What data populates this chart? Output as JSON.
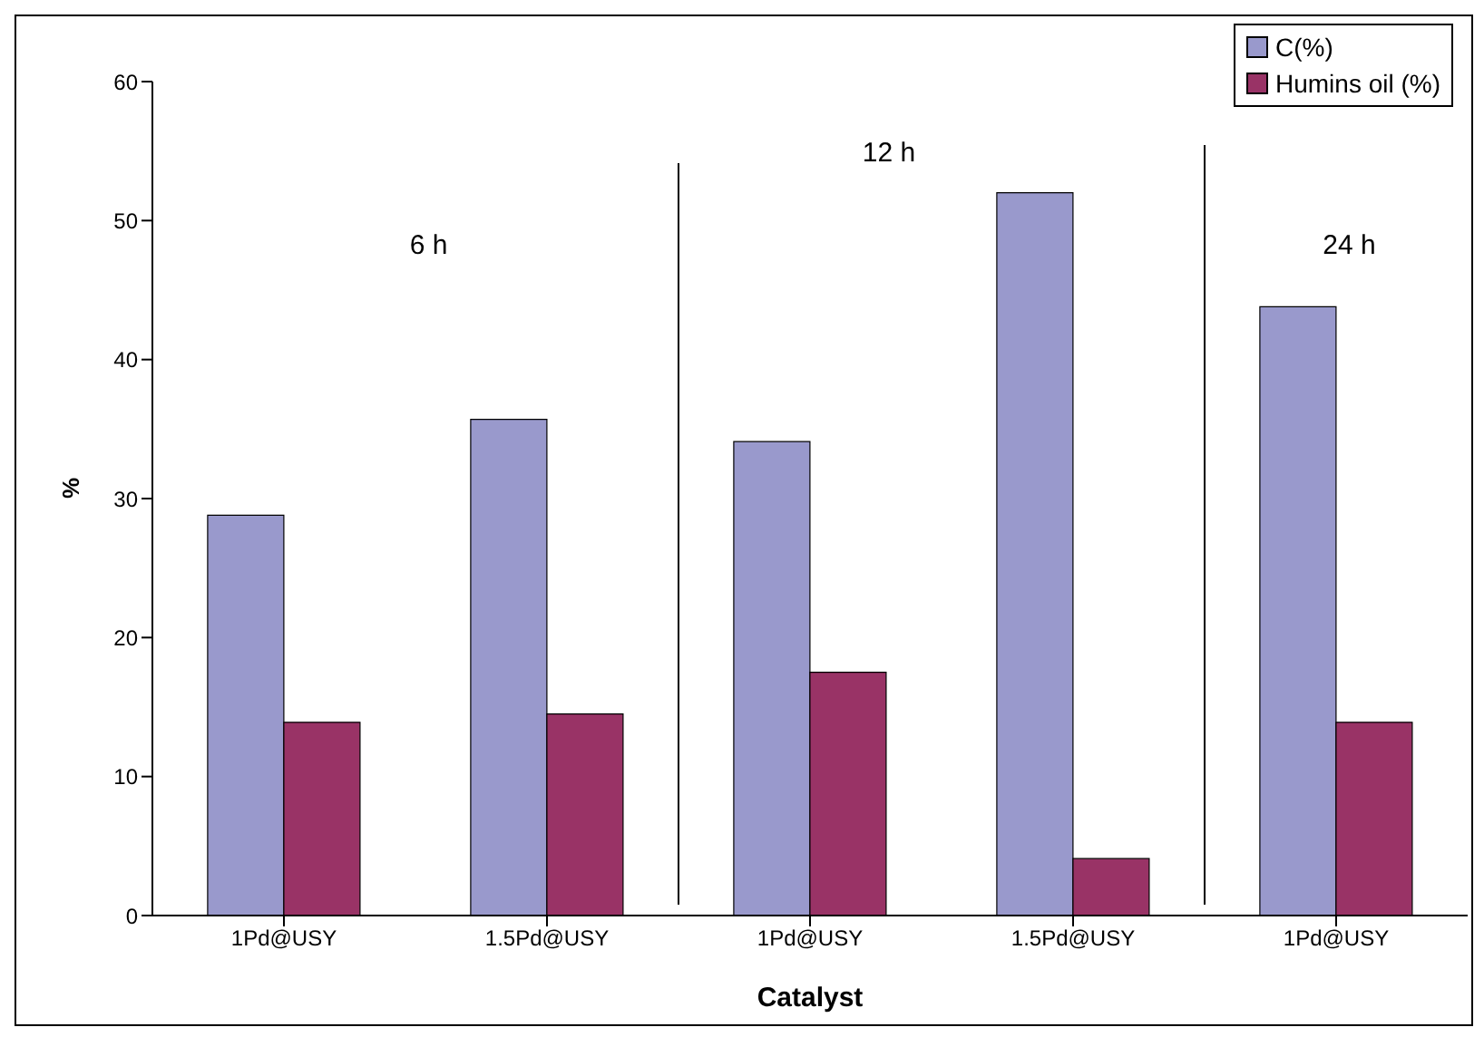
{
  "chart_data": {
    "type": "bar",
    "xlabel": "Catalyst",
    "ylabel": "%",
    "categories": [
      "1Pd@USY",
      "1.5Pd@USY",
      "1Pd@USY",
      "1.5Pd@USY",
      "1Pd@USY"
    ],
    "series": [
      {
        "name": "C(%)",
        "color": "#9999cc",
        "values": [
          28.8,
          35.7,
          34.1,
          52.0,
          43.8
        ]
      },
      {
        "name": "Humins oil (%)",
        "color": "#993366",
        "values": [
          13.9,
          14.5,
          17.5,
          4.1,
          13.9
        ]
      }
    ],
    "ylim": [
      0,
      60
    ],
    "yticks": [
      0,
      10,
      20,
      30,
      40,
      50,
      60
    ],
    "grid": false,
    "legend": "top right",
    "annotations": [
      "6 h",
      "12 h",
      "24 h"
    ]
  }
}
